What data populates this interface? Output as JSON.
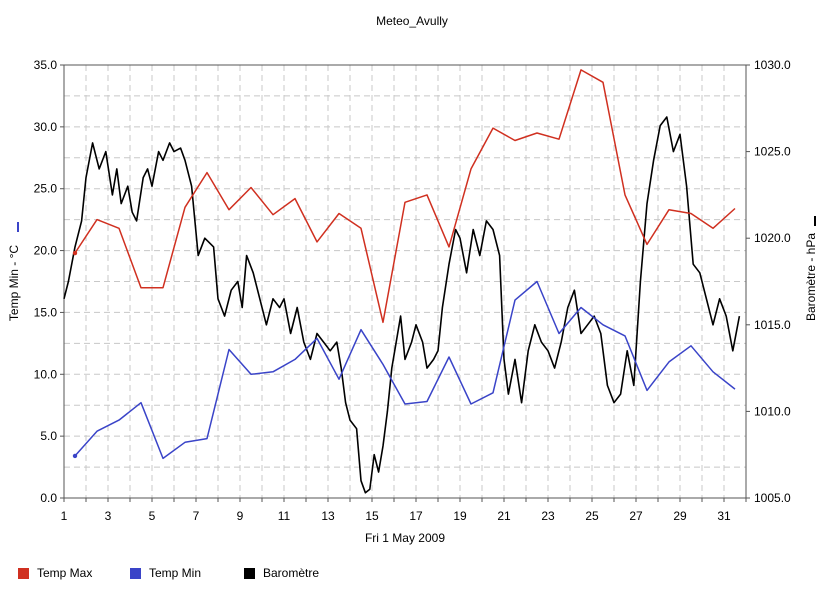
{
  "chart_data": {
    "type": "line",
    "title": "Meteo_Avully",
    "xlabel": "Fri 1 May 2009",
    "ylabel_left": "Temp Min - °C",
    "ylabel_right": "Baromètre - hPa",
    "left_axis": {
      "min": 0,
      "max": 35,
      "ticks": [
        "0.0",
        "5.0",
        "10.0",
        "15.0",
        "20.0",
        "25.0",
        "30.0",
        "35.0"
      ]
    },
    "right_axis": {
      "min": 1005,
      "max": 1030,
      "ticks": [
        "1005.0",
        "1010.0",
        "1015.0",
        "1020.0",
        "1025.0",
        "1030.0"
      ]
    },
    "x_axis": {
      "min": 1,
      "max": 32,
      "ticks": [
        "1",
        "3",
        "5",
        "7",
        "9",
        "11",
        "13",
        "15",
        "17",
        "19",
        "21",
        "23",
        "25",
        "27",
        "29",
        "31"
      ]
    },
    "grid": true,
    "legend_position": "bottom",
    "series": [
      {
        "name": "Temp Max",
        "color": "#d03020",
        "axis": "left",
        "x": [
          1.5,
          2.5,
          3.5,
          4.5,
          5.5,
          6.5,
          7.5,
          8.5,
          9.5,
          10.5,
          11.5,
          12.5,
          13.5,
          14.5,
          15.5,
          16.5,
          17.5,
          18.5,
          19.5,
          20.5,
          21.5,
          22.5,
          23.5,
          24.5,
          25.5,
          26.5,
          27.5,
          28.5,
          29.5,
          30.5,
          31.5
        ],
        "y": [
          19.8,
          22.5,
          21.8,
          17.0,
          17.0,
          23.5,
          26.3,
          23.3,
          25.1,
          22.9,
          24.2,
          20.7,
          23.0,
          21.8,
          14.2,
          23.9,
          24.5,
          20.3,
          26.6,
          29.9,
          28.9,
          29.5,
          29.0,
          34.6,
          33.6,
          24.5,
          20.5,
          23.3,
          23.0,
          21.8,
          23.4
        ]
      },
      {
        "name": "Temp Min",
        "color": "#3a44c8",
        "axis": "left",
        "x": [
          1.5,
          2.5,
          3.5,
          4.5,
          5.5,
          6.5,
          7.5,
          8.5,
          9.5,
          10.5,
          11.5,
          12.5,
          13.5,
          14.5,
          15.5,
          16.5,
          17.5,
          18.5,
          19.5,
          20.5,
          21.5,
          22.5,
          23.5,
          24.5,
          25.5,
          26.5,
          27.5,
          28.5,
          29.5,
          30.5,
          31.5
        ],
        "y": [
          3.4,
          5.4,
          6.3,
          7.7,
          3.2,
          4.5,
          4.8,
          12.0,
          10.0,
          10.2,
          11.2,
          12.9,
          9.6,
          13.6,
          10.8,
          7.6,
          7.8,
          11.4,
          7.6,
          8.5,
          16.0,
          17.5,
          13.3,
          15.4,
          14.0,
          13.1,
          8.7,
          11.0,
          12.3,
          10.2,
          8.8
        ]
      },
      {
        "name": "Baromètre",
        "color": "#000000",
        "axis": "right",
        "x": [
          1.0,
          1.2,
          1.5,
          1.8,
          2.0,
          2.3,
          2.6,
          2.9,
          3.2,
          3.4,
          3.6,
          3.9,
          4.1,
          4.3,
          4.6,
          4.8,
          5.0,
          5.3,
          5.5,
          5.8,
          6.0,
          6.3,
          6.5,
          6.8,
          7.1,
          7.4,
          7.8,
          8.0,
          8.3,
          8.6,
          8.9,
          9.1,
          9.3,
          9.6,
          9.9,
          10.2,
          10.5,
          10.8,
          11.0,
          11.3,
          11.6,
          11.9,
          12.2,
          12.5,
          12.8,
          13.1,
          13.4,
          13.6,
          13.8,
          14.0,
          14.3,
          14.5,
          14.7,
          14.9,
          15.1,
          15.3,
          15.5,
          15.7,
          15.9,
          16.1,
          16.3,
          16.5,
          16.8,
          17.0,
          17.3,
          17.5,
          17.8,
          18.0,
          18.2,
          18.5,
          18.8,
          19.0,
          19.3,
          19.6,
          19.9,
          20.2,
          20.5,
          20.8,
          21.0,
          21.2,
          21.5,
          21.8,
          22.1,
          22.4,
          22.7,
          23.0,
          23.3,
          23.6,
          23.9,
          24.2,
          24.5,
          24.8,
          25.1,
          25.4,
          25.7,
          26.0,
          26.3,
          26.6,
          26.9,
          27.2,
          27.5,
          27.8,
          28.1,
          28.4,
          28.7,
          29.0,
          29.3,
          29.6,
          29.9,
          30.2,
          30.5,
          30.8,
          31.1,
          31.4,
          31.7
        ],
        "y": [
          1016.5,
          1017.5,
          1019.5,
          1021.0,
          1023.5,
          1025.5,
          1024.0,
          1025.0,
          1022.5,
          1024.0,
          1022.0,
          1023.0,
          1021.5,
          1021.0,
          1023.5,
          1024.0,
          1023.0,
          1025.0,
          1024.5,
          1025.5,
          1025.0,
          1025.2,
          1024.5,
          1023.0,
          1019.0,
          1020.0,
          1019.5,
          1016.5,
          1015.5,
          1017.0,
          1017.5,
          1016.0,
          1019.0,
          1018.0,
          1016.5,
          1015.0,
          1016.5,
          1016.0,
          1016.5,
          1014.5,
          1016.0,
          1014.0,
          1013.0,
          1014.5,
          1014.0,
          1013.5,
          1014.0,
          1012.5,
          1010.5,
          1009.5,
          1009.0,
          1006.0,
          1005.3,
          1005.5,
          1007.5,
          1006.5,
          1008.0,
          1010.0,
          1012.5,
          1014.0,
          1015.5,
          1013.0,
          1014.0,
          1015.0,
          1014.0,
          1012.5,
          1013.0,
          1013.5,
          1016.0,
          1018.5,
          1020.5,
          1020.0,
          1018.0,
          1020.5,
          1019.0,
          1021.0,
          1020.5,
          1019.0,
          1013.0,
          1011.0,
          1013.0,
          1010.5,
          1013.5,
          1015.0,
          1014.0,
          1013.5,
          1012.5,
          1014.0,
          1016.0,
          1017.0,
          1014.5,
          1015.0,
          1015.5,
          1014.5,
          1011.5,
          1010.5,
          1011.0,
          1013.5,
          1011.5,
          1017.5,
          1022.0,
          1024.5,
          1026.5,
          1027.0,
          1025.0,
          1026.0,
          1023.0,
          1018.5,
          1018.0,
          1016.5,
          1015.0,
          1016.5,
          1015.5,
          1013.5,
          1015.5
        ]
      }
    ]
  }
}
